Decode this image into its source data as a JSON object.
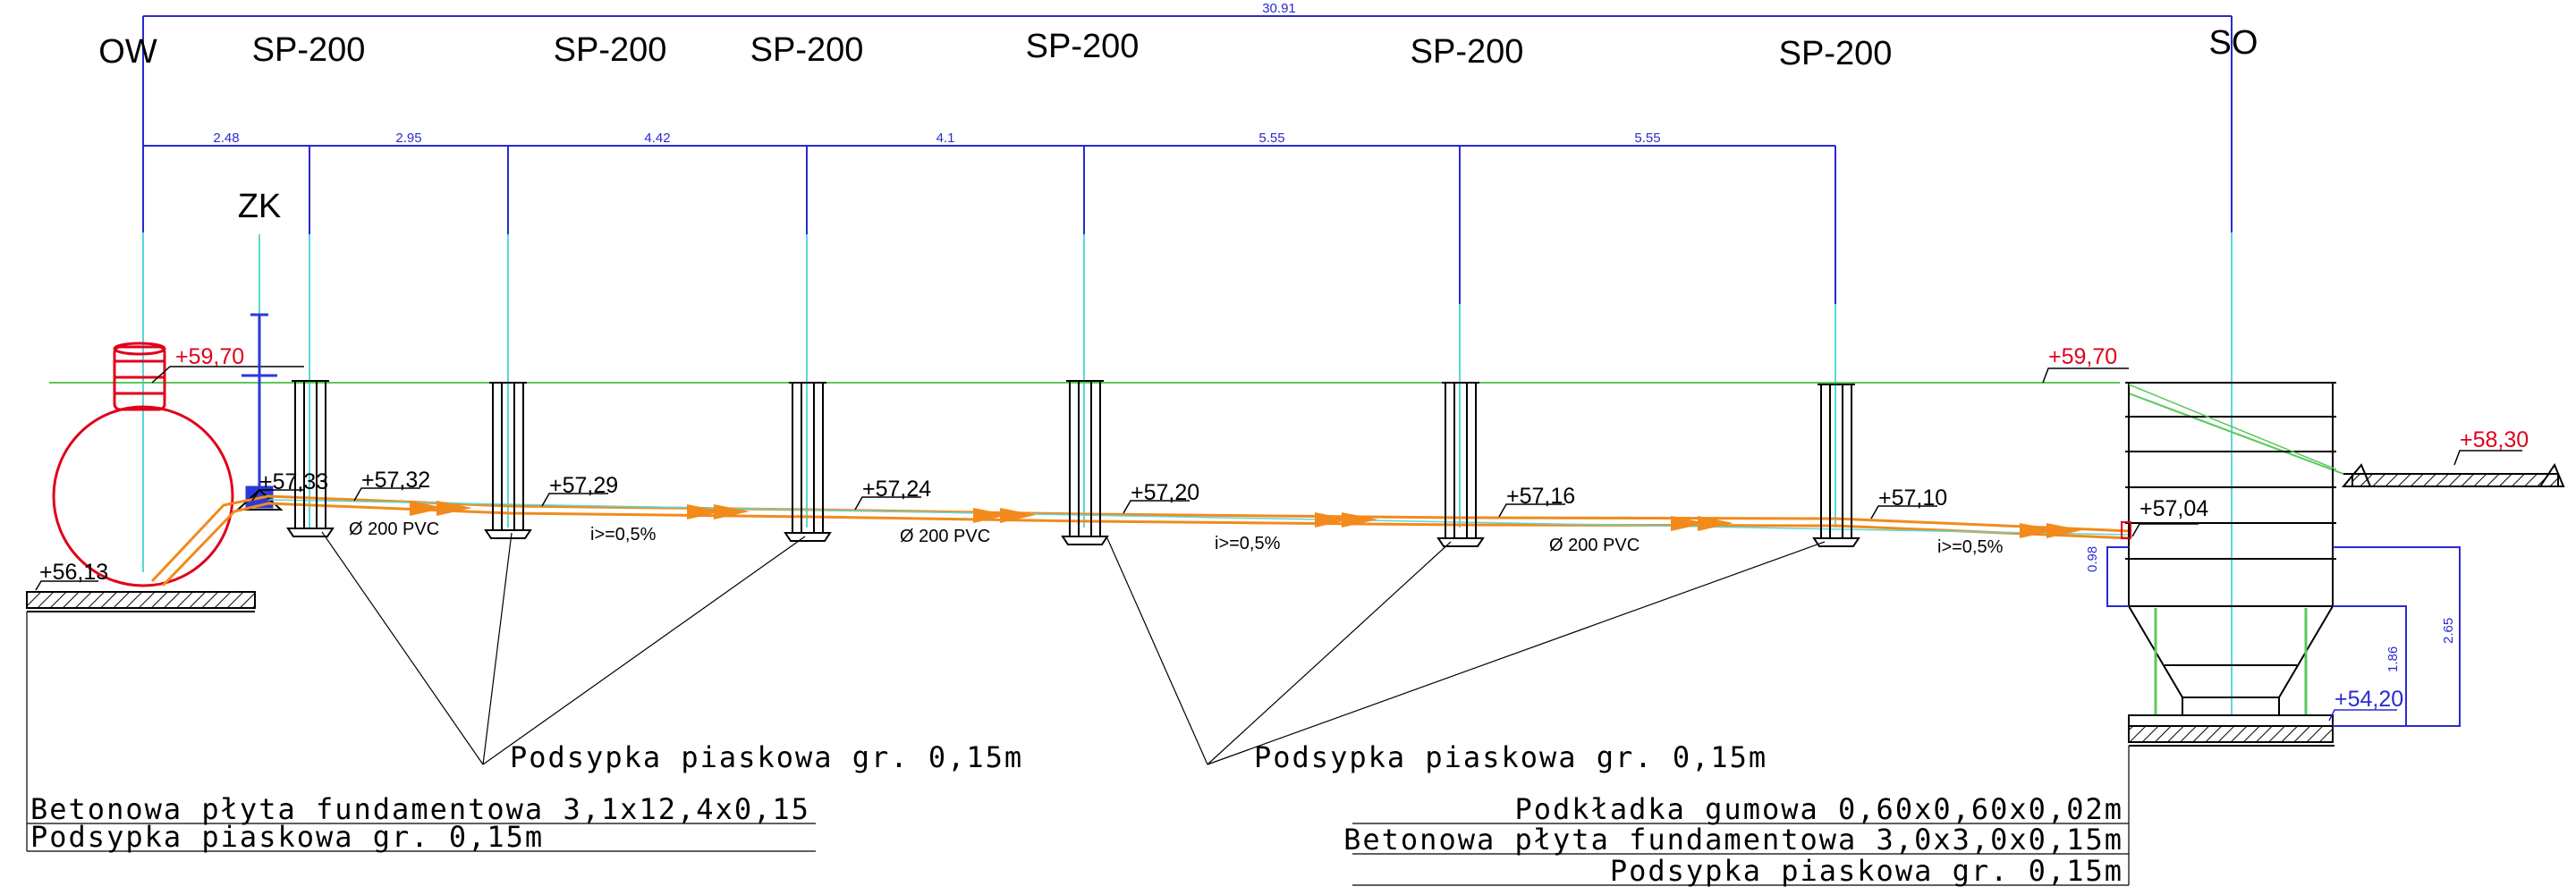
{
  "labels": {
    "ow": "OW",
    "so": "SO",
    "zk": "ZK",
    "sp": [
      "SP-200",
      "SP-200",
      "SP-200",
      "SP-200",
      "SP-200",
      "SP-200"
    ]
  },
  "dimensions": {
    "total": "30.91",
    "segments": [
      "2.48",
      "2.95",
      "4.42",
      "4.1",
      "5.55",
      "5.55"
    ],
    "so_vertical": [
      "0.98",
      "1.86",
      "2.65"
    ]
  },
  "elevations": {
    "ow_top": "+59,70",
    "ow_bottom": "+56,13",
    "so_top": "+59,70",
    "terrain_right": "+58,30",
    "so_bottom": "+54,20",
    "pipe": [
      "+57,33",
      "+57,32",
      "+57,29",
      "+57,24",
      "+57,20",
      "+57,16",
      "+57,10",
      "+57,04"
    ]
  },
  "pipe_notes": [
    "Ø 200 PVC",
    "i>=0,5%",
    "Ø 200 PVC",
    "i>=0,5%",
    "Ø 200 PVC",
    "i>=0,5%"
  ],
  "callouts": {
    "sand_left": "Podsypka piaskowa gr. 0,15m",
    "sand_mid": "Podsypka piaskowa gr. 0,15m",
    "ow_slab": "Betonowa płyta fundamentowa 3,1x12,4x0,15",
    "ow_sand": "Podsypka piaskowa gr. 0,15m",
    "so_pad": "Podkładka gumowa 0,60x0,60x0,02m",
    "so_slab": "Betonowa płyta fundamentowa 3,0x3,0x0,15m",
    "so_sand": "Podsypka piaskowa gr. 0,15m"
  },
  "colors": {
    "pipe": "#f28a1c",
    "tank": "#e0001b",
    "dimension": "#2a2ad0",
    "axis": "#5ad8d8",
    "terrain": "#5ac85a",
    "valve": "#2a3ad8"
  }
}
